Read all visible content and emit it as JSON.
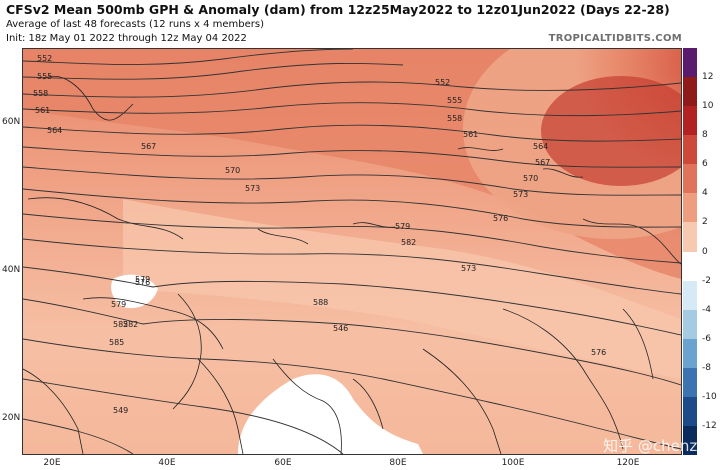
{
  "header": {
    "title": "CFSv2 Mean 500mb GPH & Anomaly (dam) from 12z25May2022 to 12z01Jun2022 (Days 22-28)",
    "subtitle1": "Average of last 48 forecasts (12 runs x 4 members)",
    "subtitle2": "Init: 18z May 01 2022 through 12z May 04 2022",
    "brand": "TROPICALTIDBITS.COM"
  },
  "map": {
    "lat_labels": [
      "60N",
      "40N",
      "20N"
    ],
    "lon_labels": [
      "20E",
      "40E",
      "60E",
      "80E",
      "100E",
      "120E"
    ],
    "contour_labels": [
      "552",
      "555",
      "558",
      "561",
      "564",
      "567",
      "570",
      "573",
      "576",
      "579",
      "582",
      "585",
      "588",
      "546",
      "549",
      "552",
      "555",
      "558",
      "561",
      "564",
      "567",
      "570",
      "573",
      "576",
      "579",
      "582",
      "573",
      "576",
      "579",
      "582"
    ],
    "colors": {
      "land_outline": "#222222",
      "contour": "#333333"
    }
  },
  "colorbar": {
    "ticks": [
      "12",
      "10",
      "8",
      "6",
      "4",
      "2",
      "0",
      "-2",
      "-4",
      "-6",
      "-8",
      "-10",
      "-12"
    ],
    "colors": [
      "#5a1a6e",
      "#8e1a1a",
      "#b22222",
      "#cd4a3a",
      "#e0745a",
      "#ee9d7e",
      "#f7c9b1",
      "#ffffff",
      "#d6eaf5",
      "#a5cbe3",
      "#6aa3cf",
      "#3b74b0",
      "#1d4b8a",
      "#0b2a5e"
    ]
  },
  "watermark": "知乎 @chenzhe"
}
